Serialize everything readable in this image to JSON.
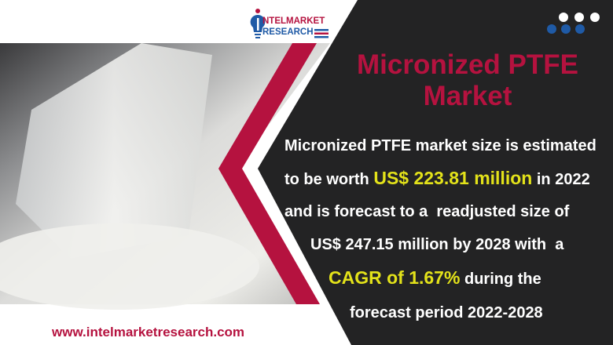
{
  "brand": {
    "logo_line1": "NTELMARKET",
    "logo_line2": "RESEARCH",
    "website": "www.intelmarketresearch.com"
  },
  "title": {
    "line1": "Micronized PTFE",
    "line2": "Market"
  },
  "body": {
    "l1": "Micronized PTFE market size is estimated",
    "l2_pre": "to be worth ",
    "l2_hl": "US$ 223.81 million",
    "l2_post": " in 2022",
    "l3": "and is forecast to a  readjusted size of",
    "l4": "US$ 247.15 million by 2028 with  a",
    "l5_hl": "CAGR of 1.67%",
    "l5_post": " during the",
    "l6": "forecast period 2022-2028"
  },
  "colors": {
    "accent_red": "#b5123f",
    "highlight_yellow": "#e3e21a",
    "dark_bg": "#232324",
    "logo_blue": "#1f5aa6"
  },
  "icons": [
    "lightbulb-logo-icon",
    "flag-stripes-icon",
    "decorative-dots-icon"
  ]
}
